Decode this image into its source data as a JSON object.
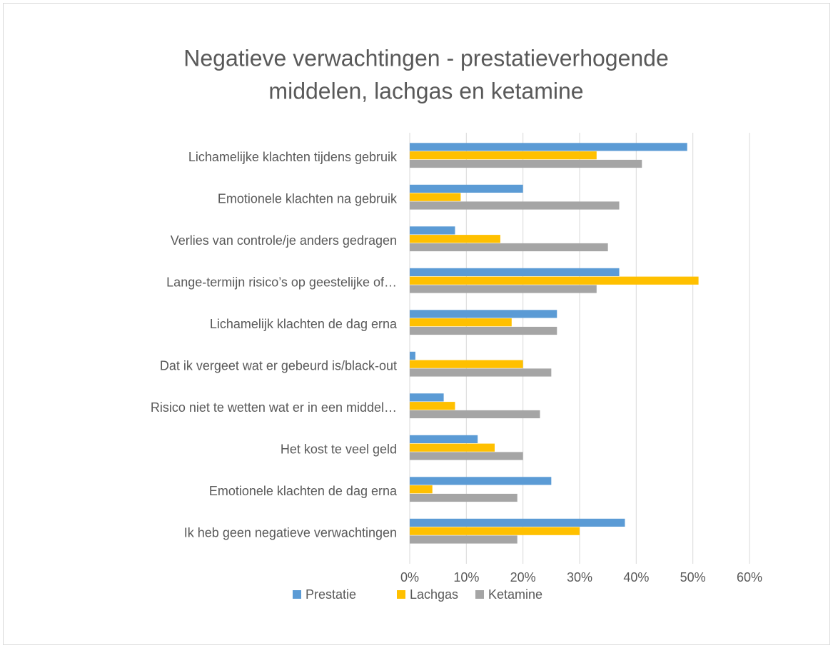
{
  "chart_data": {
    "type": "hbar",
    "title": [
      "Negatieve verwachtingen - prestatieverhogende",
      "middelen, lachgas en ketamine"
    ],
    "categories": [
      "Lichamelijke klachten tijdens gebruik",
      "Emotionele klachten na gebruik",
      "Verlies van controle/je anders gedragen",
      "Lange-termijn risico’s op geestelijke of…",
      "Lichamelijk klachten de dag erna",
      "Dat ik vergeet wat er gebeurd is/black-out",
      "Risico niet te wetten wat er in een middel…",
      "Het kost te veel geld",
      "Emotionele klachten de dag erna",
      "Ik heb geen negatieve verwachtingen"
    ],
    "series": [
      {
        "name": "Prestatie",
        "color": "#5b9bd5",
        "values": [
          49,
          20,
          8,
          37,
          26,
          1,
          6,
          12,
          25,
          38
        ]
      },
      {
        "name": "Lachgas",
        "color": "#ffc000",
        "values": [
          33,
          9,
          16,
          51,
          18,
          20,
          8,
          15,
          4,
          30
        ]
      },
      {
        "name": "Ketamine",
        "color": "#a5a5a5",
        "values": [
          41,
          37,
          35,
          33,
          26,
          25,
          23,
          20,
          19,
          19
        ]
      }
    ],
    "xlim": [
      0,
      60
    ],
    "xticks": [
      {
        "value": 0,
        "label": "0%"
      },
      {
        "value": 10,
        "label": "10%"
      },
      {
        "value": 20,
        "label": "20%"
      },
      {
        "value": 30,
        "label": "30%"
      },
      {
        "value": 40,
        "label": "40%"
      },
      {
        "value": 50,
        "label": "50%"
      },
      {
        "value": 60,
        "label": "60%"
      }
    ],
    "grid": true,
    "legend": "bottom"
  }
}
